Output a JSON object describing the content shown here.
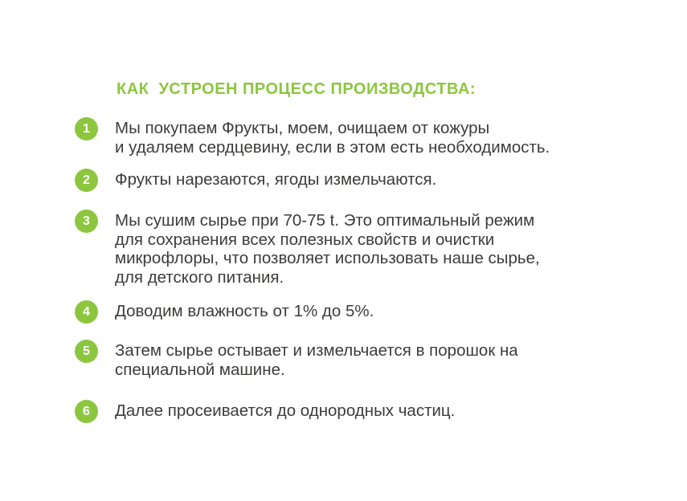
{
  "colors": {
    "accent_green": "#8cc63f",
    "body_text": "#3c3c3b",
    "badge_text": "#ffffff",
    "background": "#ffffff"
  },
  "heading": {
    "text": "КАК  УСТРОЕН ПРОЦЕСС ПРОИЗВОДСТВА:"
  },
  "steps": [
    {
      "number": "1",
      "text": "Мы покупаем Фрукты, моем, очищаем от кожуры\nи удаляем сердцевину, если в этом есть необходимость."
    },
    {
      "number": "2",
      "text": "Фрукты нарезаются, ягоды измельчаются."
    },
    {
      "number": "3",
      "text": "Мы сушим сырье при 70-75 t. Это оптимальный режим\nдля сохранения всех полезных свойств и очистки\nмикрофлоры, что позволяет использовать наше сырье,\nдля детского питания."
    },
    {
      "number": "4",
      "text": "Доводим влажность от 1% до 5%."
    },
    {
      "number": "5",
      "text": "Затем сырье остывает и измельчается в порошок на\nспециальной машине."
    },
    {
      "number": "6",
      "text": "Далее просеивается до однородных частиц."
    }
  ]
}
